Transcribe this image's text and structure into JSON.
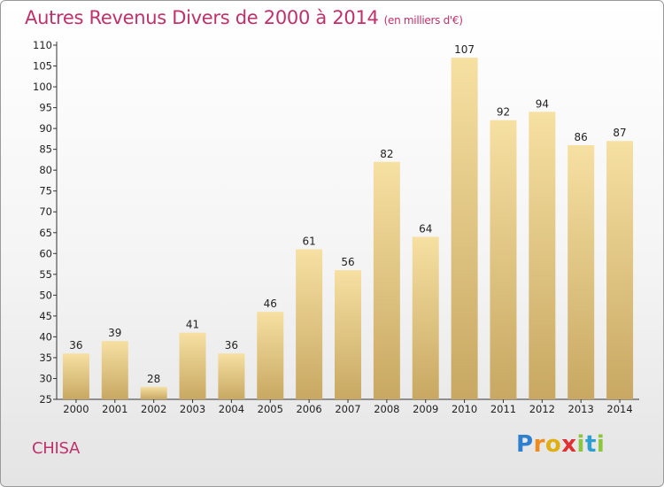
{
  "title": "Autres Revenus Divers de 2000 à 2014",
  "title_unit": "(en milliers d'€)",
  "commune": "CHISA",
  "brand": {
    "letters": [
      "P",
      "r",
      "o",
      "x",
      "i",
      "t",
      "i"
    ],
    "colors": [
      "#2f7fd0",
      "#f08a1c",
      "#e0b012",
      "#e03030",
      "#8cc63e",
      "#2f9fd0",
      "#8cc63e"
    ]
  },
  "colors": {
    "title": "#c0306a",
    "bar_light": "#f6e0a2",
    "bar_dark": "#c8a862"
  },
  "chart_data": {
    "type": "bar",
    "categories": [
      "2000",
      "2001",
      "2002",
      "2003",
      "2004",
      "2005",
      "2006",
      "2007",
      "2008",
      "2009",
      "2010",
      "2011",
      "2012",
      "2013",
      "2014"
    ],
    "values": [
      36,
      39,
      28,
      41,
      36,
      46,
      61,
      56,
      82,
      64,
      107,
      92,
      94,
      86,
      87
    ],
    "ylim": [
      25,
      110
    ],
    "yticks": [
      25,
      30,
      35,
      40,
      45,
      50,
      55,
      60,
      65,
      70,
      75,
      80,
      85,
      90,
      95,
      100,
      105,
      110
    ],
    "grid": false,
    "legend": "none"
  }
}
